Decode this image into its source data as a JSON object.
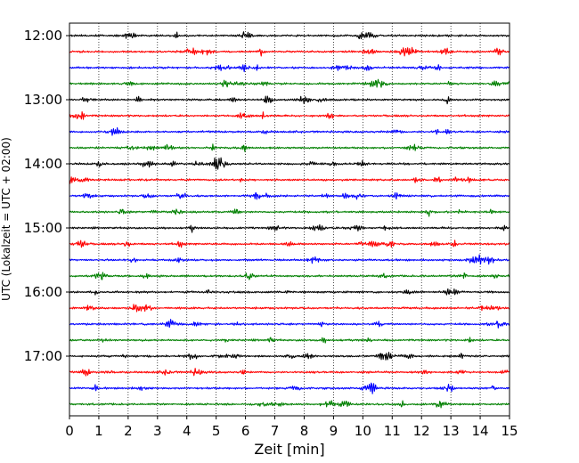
{
  "chart_data": {
    "type": "line",
    "title": "",
    "xlabel": "Zeit  [min]",
    "ylabel": "UTC (Lokalzeit = UTC + 02:00)",
    "xlim": [
      0,
      15
    ],
    "x_ticks": [
      "0",
      "1",
      "2",
      "3",
      "4",
      "5",
      "6",
      "7",
      "8",
      "9",
      "10",
      "11",
      "12",
      "13",
      "14",
      "15"
    ],
    "y_ticks": [
      "12:00",
      "13:00",
      "14:00",
      "15:00",
      "16:00",
      "17:00"
    ],
    "rows_per_hour": 4,
    "rows": [
      {
        "time": "12:00",
        "color": "#000000"
      },
      {
        "time": "12:15",
        "color": "#ff0000"
      },
      {
        "time": "12:30",
        "color": "#0000ff"
      },
      {
        "time": "12:45",
        "color": "#008000"
      },
      {
        "time": "13:00",
        "color": "#000000"
      },
      {
        "time": "13:15",
        "color": "#ff0000"
      },
      {
        "time": "13:30",
        "color": "#0000ff"
      },
      {
        "time": "13:45",
        "color": "#008000"
      },
      {
        "time": "14:00",
        "color": "#000000"
      },
      {
        "time": "14:15",
        "color": "#ff0000"
      },
      {
        "time": "14:30",
        "color": "#0000ff"
      },
      {
        "time": "14:45",
        "color": "#008000"
      },
      {
        "time": "15:00",
        "color": "#000000"
      },
      {
        "time": "15:15",
        "color": "#ff0000"
      },
      {
        "time": "15:30",
        "color": "#0000ff"
      },
      {
        "time": "15:45",
        "color": "#008000"
      },
      {
        "time": "16:00",
        "color": "#000000"
      },
      {
        "time": "16:15",
        "color": "#ff0000"
      },
      {
        "time": "16:30",
        "color": "#0000ff"
      },
      {
        "time": "16:45",
        "color": "#008000"
      },
      {
        "time": "17:00",
        "color": "#000000"
      },
      {
        "time": "17:15",
        "color": "#ff0000"
      },
      {
        "time": "17:30",
        "color": "#0000ff"
      },
      {
        "time": "17:45",
        "color": "#008000"
      }
    ],
    "grid": "vertical dotted lines at each minute",
    "legend": "none"
  }
}
